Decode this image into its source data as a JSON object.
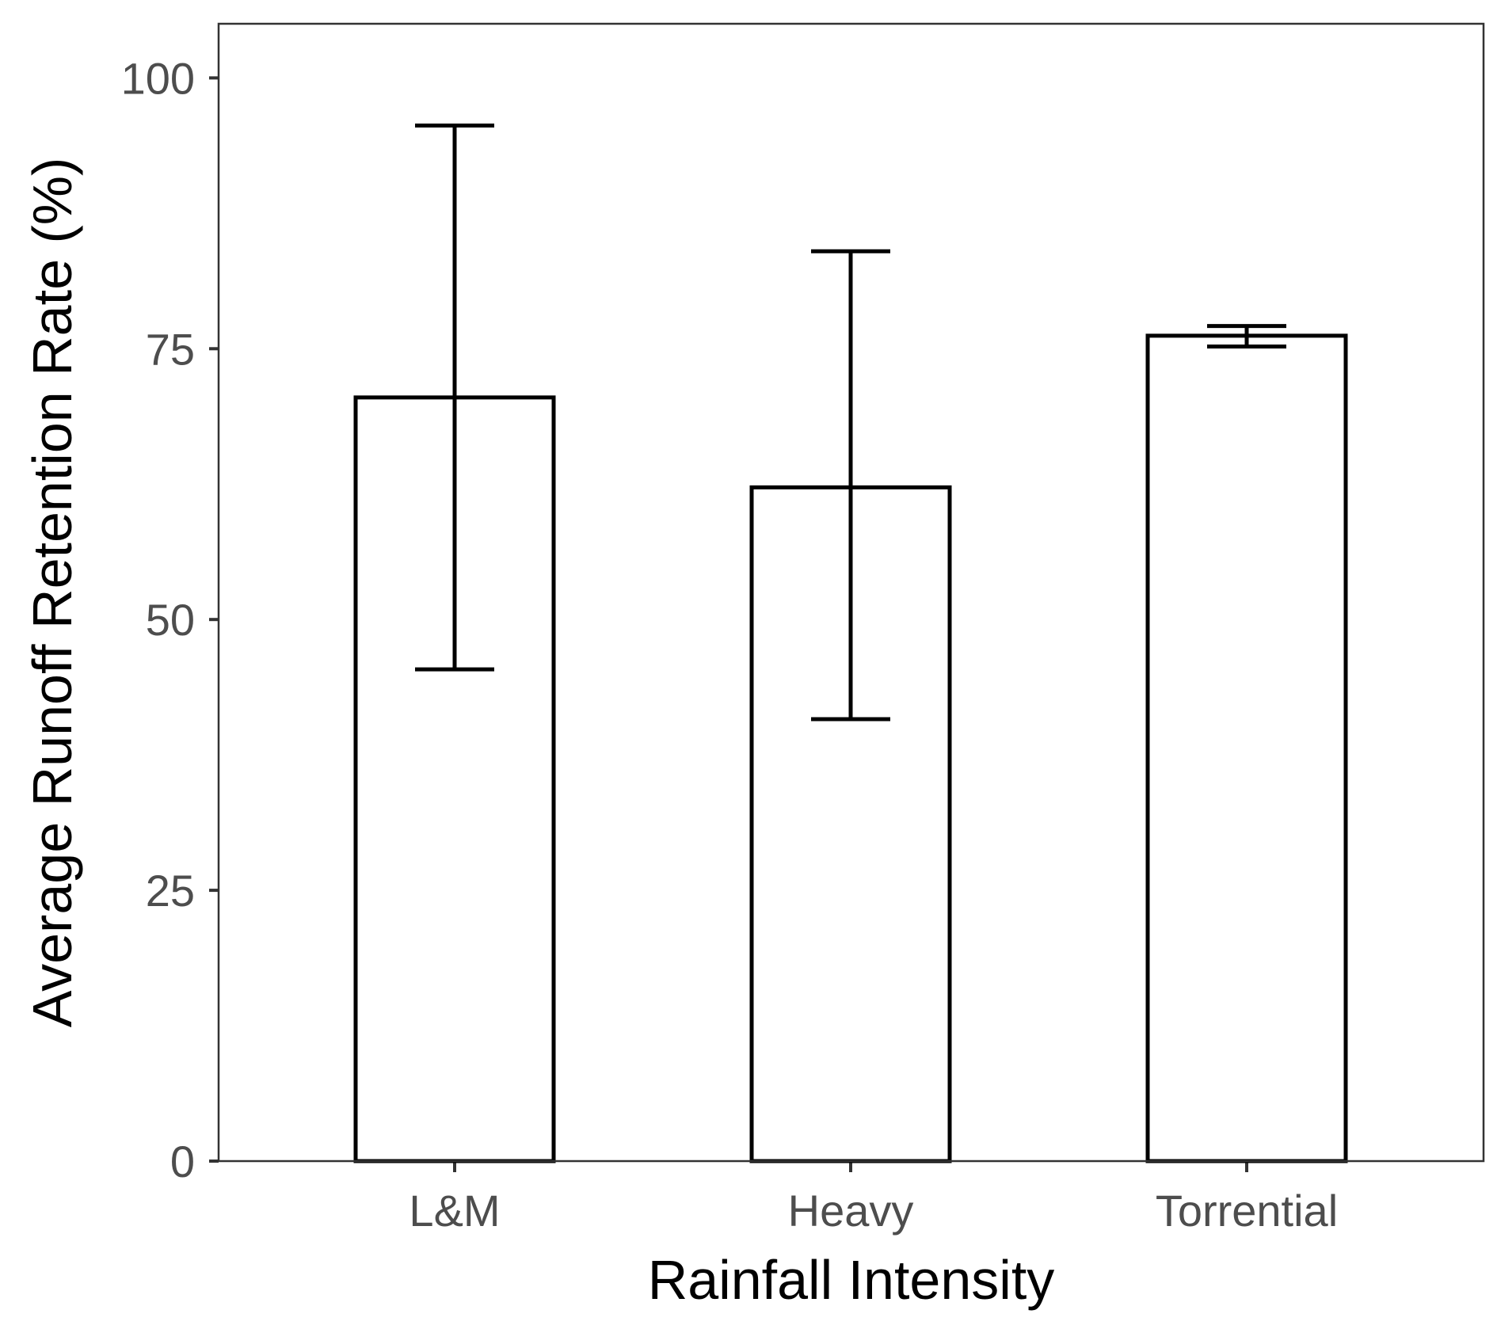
{
  "chart_data": {
    "type": "bar",
    "title": "",
    "xlabel": "Rainfall Intensity",
    "ylabel": "Average Runoff Retention Rate (%)",
    "categories": [
      "L&M",
      "Heavy",
      "Torrential"
    ],
    "values": [
      70.5,
      62.2,
      76.2
    ],
    "error_bars": [
      {
        "lower": 45.4,
        "upper": 95.6
      },
      {
        "lower": 40.8,
        "upper": 84.0
      },
      {
        "lower": 75.2,
        "upper": 77.1
      }
    ],
    "ylim": [
      0,
      105
    ],
    "yticks": [
      0,
      25,
      50,
      75,
      100
    ],
    "ytick_labels": [
      "0",
      "25",
      "50",
      "75",
      "100"
    ],
    "grid": false,
    "legend": "none",
    "colors": {
      "bar_fill": "#ffffff",
      "bar_stroke": "#000000",
      "error_bar": "#000000",
      "panel_border": "#333333",
      "tick": "#333333",
      "tick_label": "#4d4d4d",
      "axis_title": "#000000"
    }
  }
}
